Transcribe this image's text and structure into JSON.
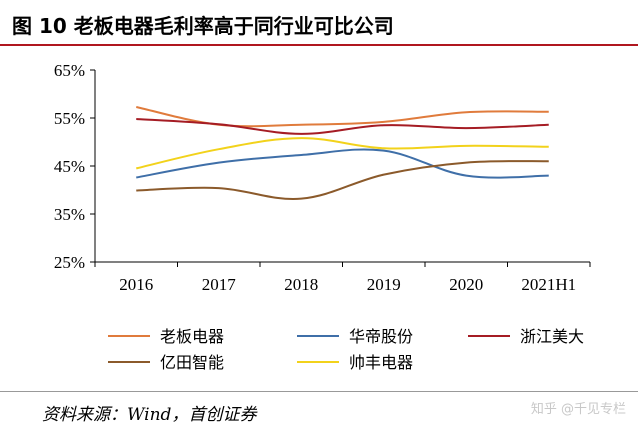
{
  "header": {
    "figure_title": "图 10 老板电器毛利率高于同行业可比公司"
  },
  "chart_data": {
    "type": "line",
    "categories": [
      "2016",
      "2017",
      "2018",
      "2019",
      "2020",
      "2021H1"
    ],
    "y_ticks": [
      "65%",
      "55%",
      "45%",
      "35%",
      "25%"
    ],
    "ylim": [
      25,
      65
    ],
    "grid": false,
    "legend_position": "bottom",
    "series": [
      {
        "name": "老板电器",
        "color": "#e07b3c",
        "values": [
          57.3,
          53.6,
          53.6,
          54.2,
          56.2,
          56.3
        ]
      },
      {
        "name": "华帝股份",
        "color": "#3f6fa8",
        "values": [
          42.6,
          45.7,
          47.3,
          48.2,
          43.0,
          43.0
        ]
      },
      {
        "name": "浙江美大",
        "color": "#a51c24",
        "values": [
          54.8,
          53.7,
          51.7,
          53.5,
          52.9,
          53.6
        ]
      },
      {
        "name": "亿田智能",
        "color": "#8b5a2b",
        "values": [
          39.9,
          40.4,
          38.2,
          43.2,
          45.7,
          46.0
        ]
      },
      {
        "name": "帅丰电器",
        "color": "#f2d21b",
        "values": [
          44.5,
          48.5,
          50.8,
          48.7,
          49.2,
          49.0
        ]
      }
    ]
  },
  "footer": {
    "source": "资料来源：Wind，首创证券",
    "watermark": "知乎 @千见专栏"
  }
}
